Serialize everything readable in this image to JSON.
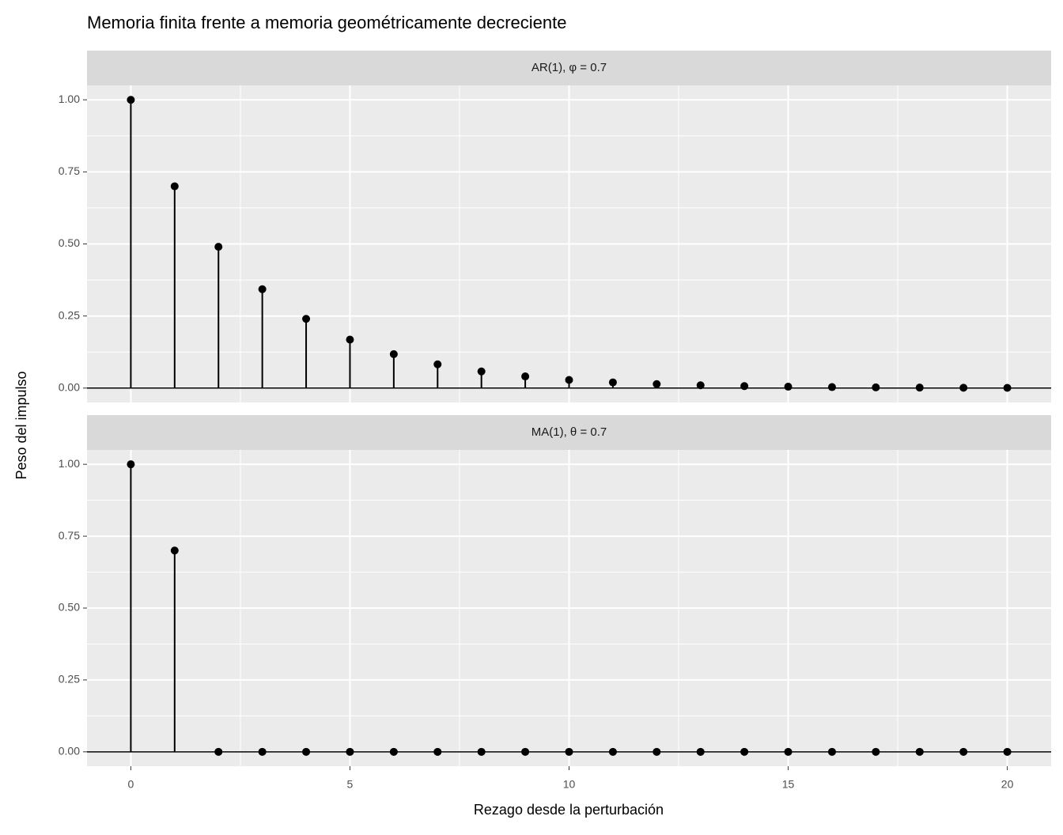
{
  "chart_data": {
    "type": "stem",
    "title": "Memoria finita frente a memoria geométricamente decreciente",
    "x_label": "Rezago desde la perturbación",
    "y_label": "Peso del impulso",
    "x": [
      0,
      1,
      2,
      3,
      4,
      5,
      6,
      7,
      8,
      9,
      10,
      11,
      12,
      13,
      14,
      15,
      16,
      17,
      18,
      19,
      20
    ],
    "xlim": [
      -1,
      21
    ],
    "xticks": [
      0,
      5,
      10,
      15,
      20
    ],
    "ylim": [
      -0.05,
      1.05
    ],
    "yticks": [
      {
        "value": 0,
        "label": "0.00"
      },
      {
        "value": 0.25,
        "label": "0.25"
      },
      {
        "value": 0.5,
        "label": "0.50"
      },
      {
        "value": 0.75,
        "label": "0.75"
      },
      {
        "value": 1,
        "label": "1.00"
      }
    ],
    "hline": 0,
    "grid": true,
    "color": "#000000",
    "facets": [
      {
        "title": "AR(1), φ = 0.7",
        "values": [
          1,
          0.7,
          0.49,
          0.343,
          0.2401,
          0.16807,
          0.117649,
          0.0823543,
          0.057648,
          0.040354,
          0.028248,
          0.019773,
          0.013841,
          0.009689,
          0.006782,
          0.004748,
          0.003323,
          0.002326,
          0.001628,
          0.00114,
          0.000798
        ]
      },
      {
        "title": "MA(1), θ = 0.7",
        "values": [
          1,
          0.7,
          0,
          0,
          0,
          0,
          0,
          0,
          0,
          0,
          0,
          0,
          0,
          0,
          0,
          0,
          0,
          0,
          0,
          0,
          0
        ]
      }
    ]
  }
}
